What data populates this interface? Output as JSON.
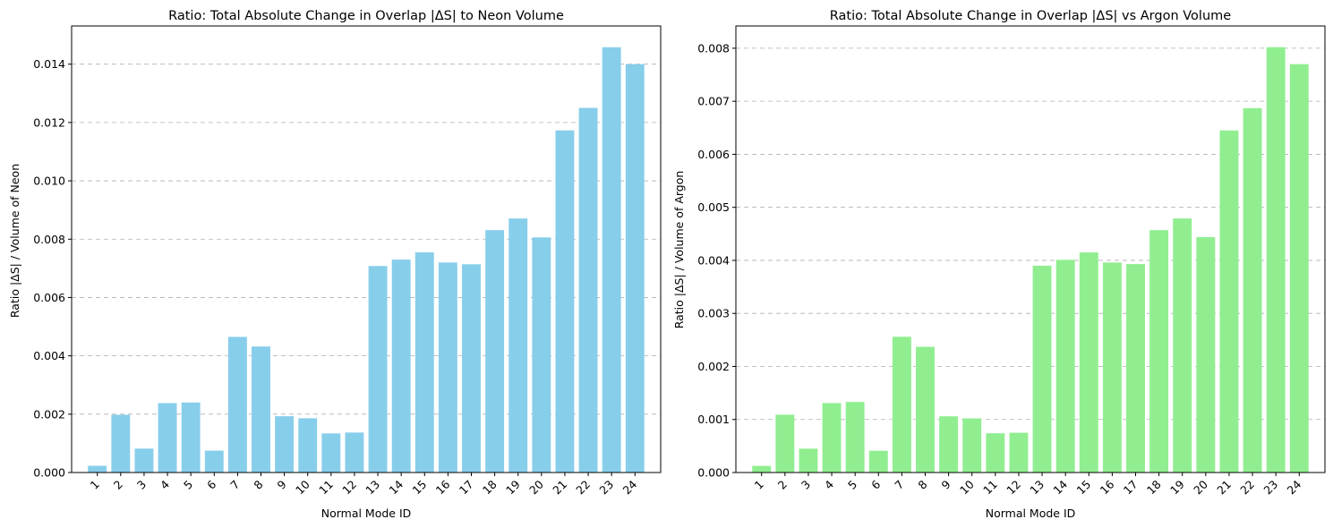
{
  "chart_data": [
    {
      "type": "bar",
      "title": "Ratio: Total Absolute Change in Overlap |ΔS| to Neon Volume",
      "xlabel": "Normal Mode ID",
      "ylabel": "Ratio |ΔS| / Volume of Neon",
      "categories": [
        "1",
        "2",
        "3",
        "4",
        "5",
        "6",
        "7",
        "8",
        "9",
        "10",
        "11",
        "12",
        "13",
        "14",
        "15",
        "16",
        "17",
        "18",
        "19",
        "20",
        "21",
        "22",
        "23",
        "24"
      ],
      "values": [
        0.00023,
        0.00198,
        0.00082,
        0.00238,
        0.0024,
        0.00075,
        0.00465,
        0.00432,
        0.00193,
        0.00186,
        0.00134,
        0.00137,
        0.00708,
        0.0073,
        0.00755,
        0.0072,
        0.00714,
        0.00831,
        0.00871,
        0.00806,
        0.01173,
        0.0125,
        0.01458,
        0.014
      ],
      "yticks": [
        "0.000",
        "0.002",
        "0.004",
        "0.006",
        "0.008",
        "0.010",
        "0.012",
        "0.014"
      ],
      "ylim": [
        0,
        0.01531
      ],
      "color": "#87ceeb",
      "grid": "y-dashed"
    },
    {
      "type": "bar",
      "title": "Ratio: Total Absolute Change in Overlap |ΔS| vs Argon Volume",
      "xlabel": "Normal Mode ID",
      "ylabel": "Ratio |ΔS| / Volume of Argon",
      "categories": [
        "1",
        "2",
        "3",
        "4",
        "5",
        "6",
        "7",
        "8",
        "9",
        "10",
        "11",
        "12",
        "13",
        "14",
        "15",
        "16",
        "17",
        "18",
        "19",
        "20",
        "21",
        "22",
        "23",
        "24"
      ],
      "values": [
        0.000125,
        0.00109,
        0.00045,
        0.00131,
        0.00133,
        0.00041,
        0.00256,
        0.00237,
        0.00106,
        0.00102,
        0.00074,
        0.00075,
        0.0039,
        0.00401,
        0.00415,
        0.00396,
        0.00393,
        0.00457,
        0.00479,
        0.00444,
        0.00645,
        0.00687,
        0.00802,
        0.0077
      ],
      "yticks": [
        "0.000",
        "0.001",
        "0.002",
        "0.003",
        "0.004",
        "0.005",
        "0.006",
        "0.007",
        "0.008"
      ],
      "ylim": [
        0,
        0.00842
      ],
      "color": "#90ee90",
      "grid": "y-dashed"
    }
  ]
}
